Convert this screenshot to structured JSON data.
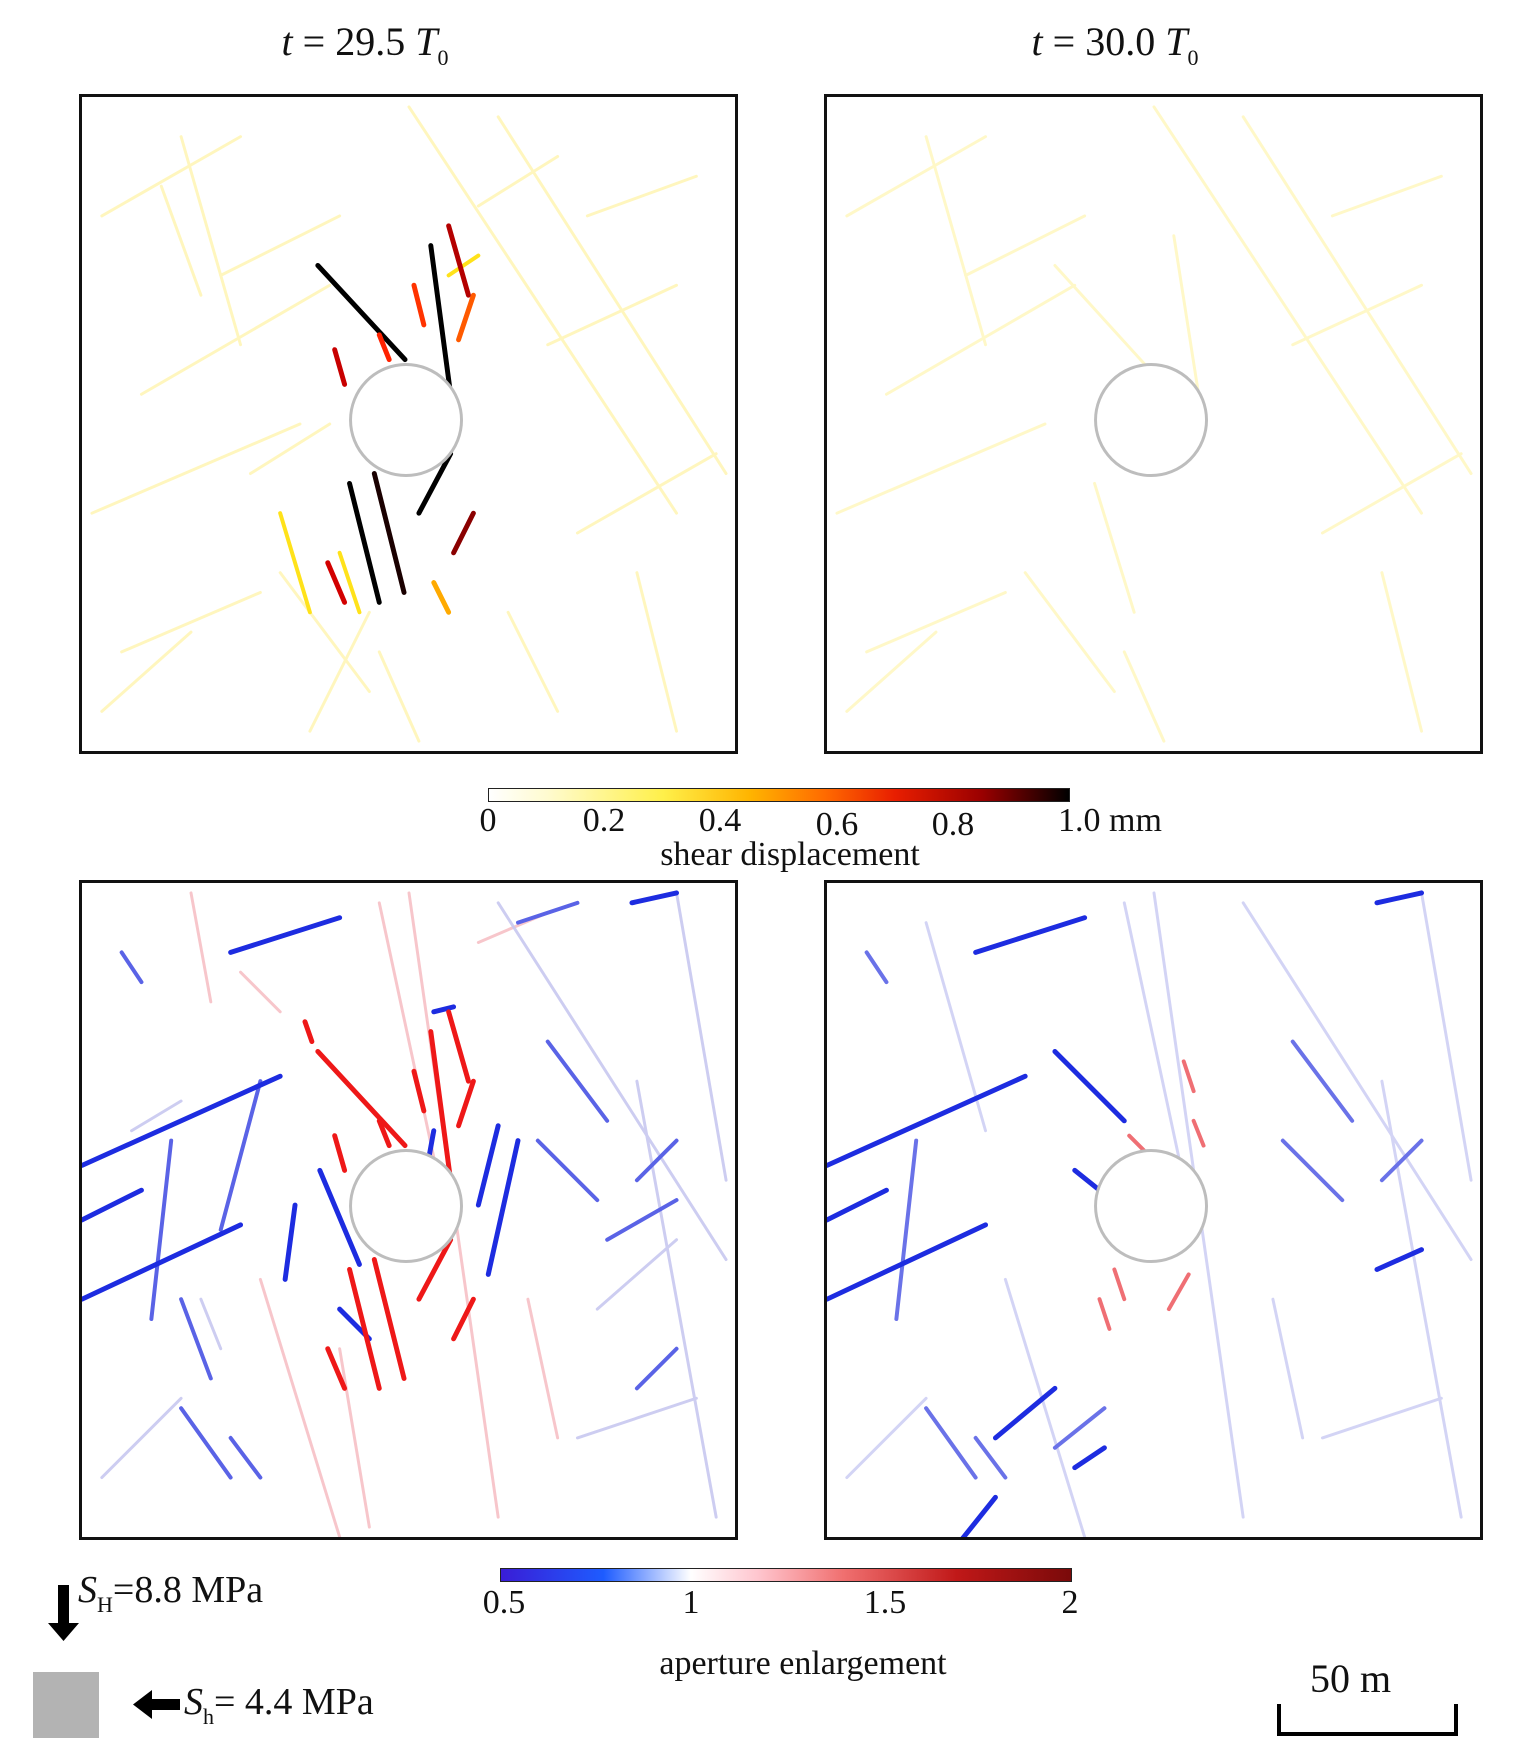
{
  "titles": [
    {
      "prefix": "t",
      "value": "= 29.5",
      "unit": "T",
      "sub": "0"
    },
    {
      "prefix": "t",
      "value": "= 30.0",
      "unit": "T",
      "sub": "0"
    }
  ],
  "shear_colorbar": {
    "ticks": [
      "0",
      "0.2",
      "0.4",
      "0.6",
      "0.8",
      "1.0 mm"
    ],
    "label": "shear displacement"
  },
  "aperture_colorbar": {
    "ticks": [
      "0.5",
      "1",
      "1.5",
      "2"
    ],
    "label": "aperture enlargement"
  },
  "stress": {
    "SH": {
      "symbol": "S",
      "sub": "H",
      "value": "=8.8 MPa"
    },
    "Sh": {
      "symbol": "S",
      "sub": "h",
      "value": "= 4.4 MPa"
    }
  },
  "scalebar": {
    "label": "50 m"
  },
  "colors": {
    "yellow_faint": "#fff3a0",
    "red": "#e8151b",
    "blue": "#1d2ce0",
    "wellbore": "#b8b8b8",
    "shear_dark": "#000000"
  }
}
